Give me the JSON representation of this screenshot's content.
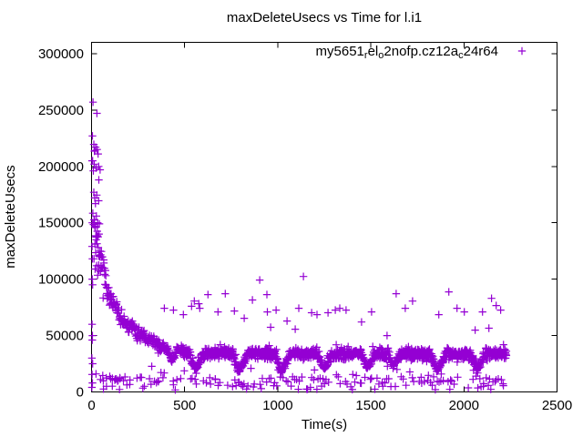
{
  "page": {
    "background": "#ffffff"
  },
  "chart_data": {
    "type": "scatter",
    "title": "maxDeleteUsecs vs Time for l.i1",
    "xlabel": "Time(s)",
    "ylabel": "maxDeleteUsecs",
    "xlim": [
      0,
      2500
    ],
    "ylim": [
      0,
      310000
    ],
    "xticks": [
      0,
      500,
      1000,
      1500,
      2000,
      2500
    ],
    "yticks": [
      0,
      50000,
      100000,
      150000,
      200000,
      250000,
      300000
    ],
    "grid": false,
    "legend_position": "top-right-inside",
    "axis_color": "#000000",
    "text_color": "#000000",
    "marker_glyph": "+",
    "series": [
      {
        "name": "my5651_rel_o2nofp.cz12a_c24r64",
        "label_runs": [
          {
            "t": "my5651"
          },
          {
            "sub": "r"
          },
          {
            "t": "el"
          },
          {
            "sub": "o"
          },
          {
            "t": "2nofp.cz12a"
          },
          {
            "sub": "c"
          },
          {
            "t": "24r64"
          }
        ],
        "color": "#9400D3",
        "marker": "+",
        "summary": "Max delete latency spikes to ~257000 usecs in the first ~50s, decays to a dense plateau band near 30000-40000 usecs with periodic dips to ~18000-23000 about every 230s, a sparse bottom band at ~2000-14000 usecs, and scattered outliers between 50000 and 102000 usecs; data ends near t=2230s.",
        "explicit_points": [
          [
            8,
            257000
          ],
          [
            29,
            247000
          ],
          [
            5,
            227000
          ],
          [
            12,
            219500
          ],
          [
            22,
            217000
          ],
          [
            30,
            215000
          ],
          [
            15,
            213500
          ],
          [
            35,
            211000
          ],
          [
            18,
            214000
          ],
          [
            6,
            205000
          ],
          [
            14,
            202000
          ],
          [
            38,
            200000
          ],
          [
            24,
            198500
          ],
          [
            46,
            197000
          ],
          [
            10,
            196000
          ],
          [
            39,
            188000
          ],
          [
            12,
            177000
          ],
          [
            28,
            174500
          ],
          [
            17,
            172000
          ],
          [
            38,
            169500
          ],
          [
            21,
            167000
          ],
          [
            7,
            158500
          ],
          [
            26,
            156000
          ],
          [
            16,
            152500
          ],
          [
            33,
            150000
          ],
          [
            11,
            148500
          ],
          [
            42,
            149000
          ],
          [
            20,
            146000
          ],
          [
            31,
            142500
          ],
          [
            40,
            140000
          ],
          [
            25,
            135000
          ],
          [
            18,
            131000
          ],
          [
            36,
            128000
          ],
          [
            22,
            123500
          ],
          [
            44,
            121000
          ],
          [
            13,
            118000
          ],
          [
            27,
            112000
          ],
          [
            19,
            109000
          ],
          [
            48,
            107000
          ],
          [
            33,
            103500
          ],
          [
            3,
            205000
          ],
          [
            4,
            150000
          ],
          [
            3,
            129000
          ],
          [
            5,
            118000
          ],
          [
            4,
            100000
          ],
          [
            6,
            95000
          ],
          [
            3,
            60000
          ],
          [
            5,
            50000
          ],
          [
            4,
            46000
          ],
          [
            2,
            30000
          ],
          [
            6,
            25000
          ],
          [
            3,
            15500
          ],
          [
            5,
            8000
          ],
          [
            2,
            4000
          ],
          [
            24,
            16000
          ],
          [
            60,
            14500
          ],
          [
            98,
            13700
          ],
          [
            112,
            12000
          ],
          [
            125,
            10500
          ],
          [
            133,
            11500
          ],
          [
            140,
            9700
          ],
          [
            152,
            12500
          ],
          [
            171,
            10000
          ],
          [
            190,
            6200
          ],
          [
            205,
            6600
          ],
          [
            244,
            12300
          ],
          [
            268,
            12800
          ],
          [
            64,
            2600
          ],
          [
            150,
            2200
          ],
          [
            391,
            74200
          ],
          [
            440,
            72600
          ],
          [
            493,
            68500
          ],
          [
            537,
            76000
          ],
          [
            552,
            80600
          ],
          [
            576,
            78200
          ],
          [
            581,
            74200
          ],
          [
            625,
            86300
          ],
          [
            679,
            71000
          ],
          [
            718,
            87100
          ],
          [
            767,
            71800
          ],
          [
            820,
            65300
          ],
          [
            864,
            81500
          ],
          [
            903,
            99200
          ],
          [
            942,
            86300
          ],
          [
            944,
            71000
          ],
          [
            962,
            57300
          ],
          [
            991,
            72600
          ],
          [
            1050,
            62900
          ],
          [
            1094,
            55600
          ],
          [
            1113,
            74200
          ],
          [
            1138,
            102400
          ],
          [
            1182,
            70200
          ],
          [
            1211,
            68500
          ],
          [
            1270,
            70200
          ],
          [
            1309,
            72600
          ],
          [
            1333,
            74200
          ],
          [
            1367,
            72600
          ],
          [
            1450,
            62000
          ],
          [
            1504,
            71000
          ],
          [
            1587,
            50000
          ],
          [
            1636,
            87100
          ],
          [
            1685,
            74200
          ],
          [
            1724,
            80600
          ],
          [
            1865,
            68500
          ],
          [
            1919,
            88700
          ],
          [
            1963,
            74200
          ],
          [
            2002,
            71000
          ],
          [
            2060,
            54800
          ],
          [
            2100,
            71000
          ],
          [
            2134,
            56500
          ],
          [
            2148,
            83000
          ],
          [
            2173,
            76600
          ],
          [
            2197,
            72600
          ],
          [
            2212,
            5600
          ]
        ],
        "generator": {
          "seed": 7,
          "band_segments": [
            [
              15,
              40,
              152000,
              122000,
              16000,
              2.5
            ],
            [
              40,
              100,
              122000,
              83000,
              13000,
              2
            ],
            [
              100,
              160,
              83000,
              64000,
              9500,
              2
            ],
            [
              160,
              260,
              64000,
              51000,
              7500,
              2
            ],
            [
              260,
              360,
              51000,
              41000,
              6000,
              2
            ],
            [
              360,
              480,
              39500,
              36500,
              5000,
              1.8
            ],
            [
              480,
              2230,
              34500,
              33500,
              6000,
              1.6
            ]
          ],
          "dips": [
            [
              430,
              27000,
              20,
              30
            ],
            [
              560,
              20000,
              35,
              45
            ],
            [
              790,
              19000,
              35,
              50
            ],
            [
              1020,
              18000,
              35,
              50
            ],
            [
              1250,
              20000,
              35,
              45
            ],
            [
              1480,
              21000,
              30,
              40
            ],
            [
              1620,
              22500,
              26,
              36
            ],
            [
              1855,
              19000,
              35,
              50
            ],
            [
              2070,
              20000,
              35,
              45
            ]
          ],
          "bottom_band": {
            "t0": 30,
            "t1": 2230,
            "step": 9,
            "p_mid": 0.5,
            "v_mid": [
              5000,
              13500
            ],
            "p_low": 0.08,
            "v_low": [
              1800,
              5000
            ],
            "p_high": 0.04,
            "v_high": [
              14000,
              24000
            ]
          }
        }
      }
    ]
  }
}
